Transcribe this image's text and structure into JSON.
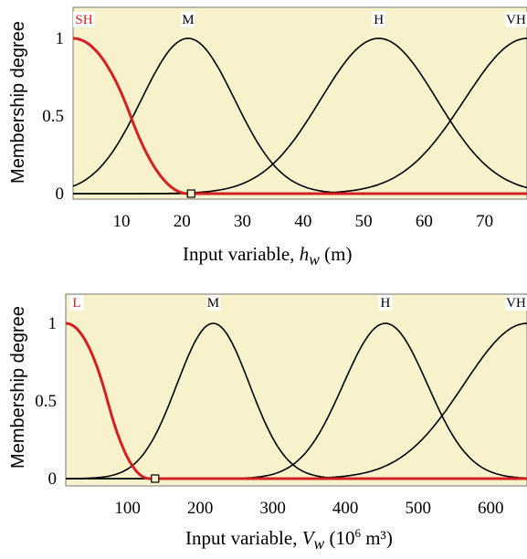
{
  "colors": {
    "plot_bg": "#f7f2cc",
    "curve": "#000000",
    "selected_curve": "#d42020",
    "label_bg": "#ffffff"
  },
  "chart_data": [
    {
      "type": "line",
      "chart_kind": "fuzzy membership functions",
      "xlabel_prefix": "Input variable, ",
      "xlabel_var": "h",
      "xlabel_sub": "w",
      "xlabel_unit_pre": " (m)",
      "xlabel_unit_sup": "",
      "xlabel_unit_post": "",
      "ylabel": "Membership degree",
      "xlim": [
        2,
        77
      ],
      "ylim": [
        0,
        1
      ],
      "xticks": [
        "10",
        "20",
        "30",
        "40",
        "50",
        "60",
        "70"
      ],
      "xtick_values": [
        10,
        20,
        30,
        40,
        50,
        60,
        70
      ],
      "yticks": [
        "0",
        "0.5",
        "1"
      ],
      "ytick_values": [
        0,
        0.5,
        1
      ],
      "marker_x": 21.5,
      "series": [
        {
          "name": "SH",
          "shape": "zmf",
          "params": [
            2,
            21
          ],
          "selected": true
        },
        {
          "name": "M",
          "shape": "gaussmf",
          "params": [
            21,
            7.7
          ],
          "selected": false
        },
        {
          "name": "H",
          "shape": "gaussmf",
          "params": [
            52.5,
            9.6
          ],
          "selected": false
        },
        {
          "name": "VH",
          "shape": "smf-gauss",
          "params": [
            77,
            10.3
          ],
          "selected": false
        }
      ]
    },
    {
      "type": "line",
      "chart_kind": "fuzzy membership functions",
      "xlabel_prefix": "Input variable, ",
      "xlabel_var": "V",
      "xlabel_sub": "w",
      "xlabel_unit_pre": " (10",
      "xlabel_unit_sup": "6",
      "xlabel_unit_post": " m³)",
      "ylabel": "Membership degree",
      "xlim": [
        15,
        650
      ],
      "ylim": [
        0,
        1
      ],
      "xticks": [
        "100",
        "200",
        "300",
        "400",
        "500",
        "600"
      ],
      "xtick_values": [
        100,
        200,
        300,
        400,
        500,
        600
      ],
      "yticks": [
        "0",
        "0.5",
        "1"
      ],
      "ytick_values": [
        0,
        0.5,
        1
      ],
      "marker_x": 138,
      "series": [
        {
          "name": "L",
          "shape": "zmf",
          "params": [
            15,
            130
          ],
          "selected": true
        },
        {
          "name": "M",
          "shape": "gaussmf",
          "params": [
            218,
            50
          ],
          "selected": false
        },
        {
          "name": "H",
          "shape": "gaussmf",
          "params": [
            455,
            58
          ],
          "selected": false
        },
        {
          "name": "VH",
          "shape": "smf-gauss",
          "params": [
            650,
            87
          ],
          "selected": false
        }
      ]
    }
  ]
}
